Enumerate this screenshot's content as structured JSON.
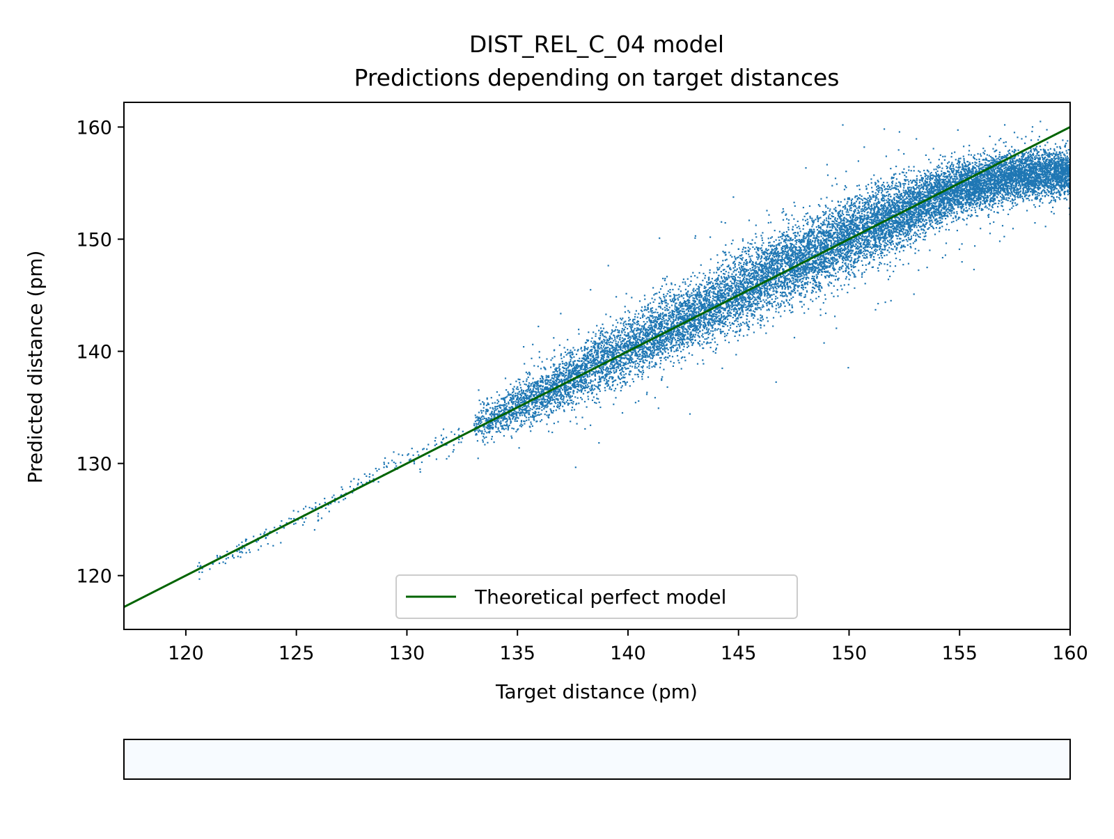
{
  "chart_data": {
    "type": "scatter",
    "title": "DIST_REL_C_04 model",
    "subtitle": "Predictions depending on target distances",
    "xlabel": "Target distance (pm)",
    "ylabel": "Predicted distance (pm)",
    "xlim": [
      117.2,
      160
    ],
    "ylim": [
      115.2,
      162.2
    ],
    "x_ticks": [
      120,
      125,
      130,
      135,
      140,
      145,
      150,
      155,
      160
    ],
    "y_ticks": [
      120,
      130,
      140,
      150,
      160
    ],
    "grid": false,
    "legend": {
      "position": "lower-center",
      "entries": [
        "Theoretical perfect model"
      ]
    },
    "colors": {
      "points": "#1f77b4",
      "perfect_line": "#006400",
      "colorbar_fill": "#f7fbff"
    },
    "series": [
      {
        "name": "",
        "kind": "scatter",
        "color": "#1f77b4",
        "density_ridge": {
          "x": [
            120.5,
            122,
            126,
            129,
            131,
            133,
            135,
            137,
            139,
            141,
            143,
            145,
            147,
            149,
            151,
            153,
            155,
            157,
            159,
            160
          ],
          "y_center": [
            120.7,
            122.0,
            126.0,
            129.8,
            131.0,
            133.4,
            135.2,
            137.3,
            139.4,
            141.3,
            143.4,
            145.4,
            147.4,
            149.4,
            151.2,
            153.0,
            154.6,
            155.5,
            156.0,
            156.0
          ],
          "spread": [
            0.4,
            0.4,
            0.5,
            0.4,
            0.6,
            0.7,
            1.0,
            1.2,
            1.3,
            1.4,
            1.5,
            1.6,
            1.7,
            1.7,
            1.6,
            1.4,
            1.2,
            1.1,
            1.0,
            1.0
          ]
        }
      },
      {
        "name": "Theoretical perfect model",
        "kind": "line",
        "color": "#006400",
        "x": [
          117.2,
          160
        ],
        "y": [
          117.2,
          160
        ]
      }
    ],
    "colorbar": {
      "orientation": "horizontal",
      "ticks": []
    }
  }
}
